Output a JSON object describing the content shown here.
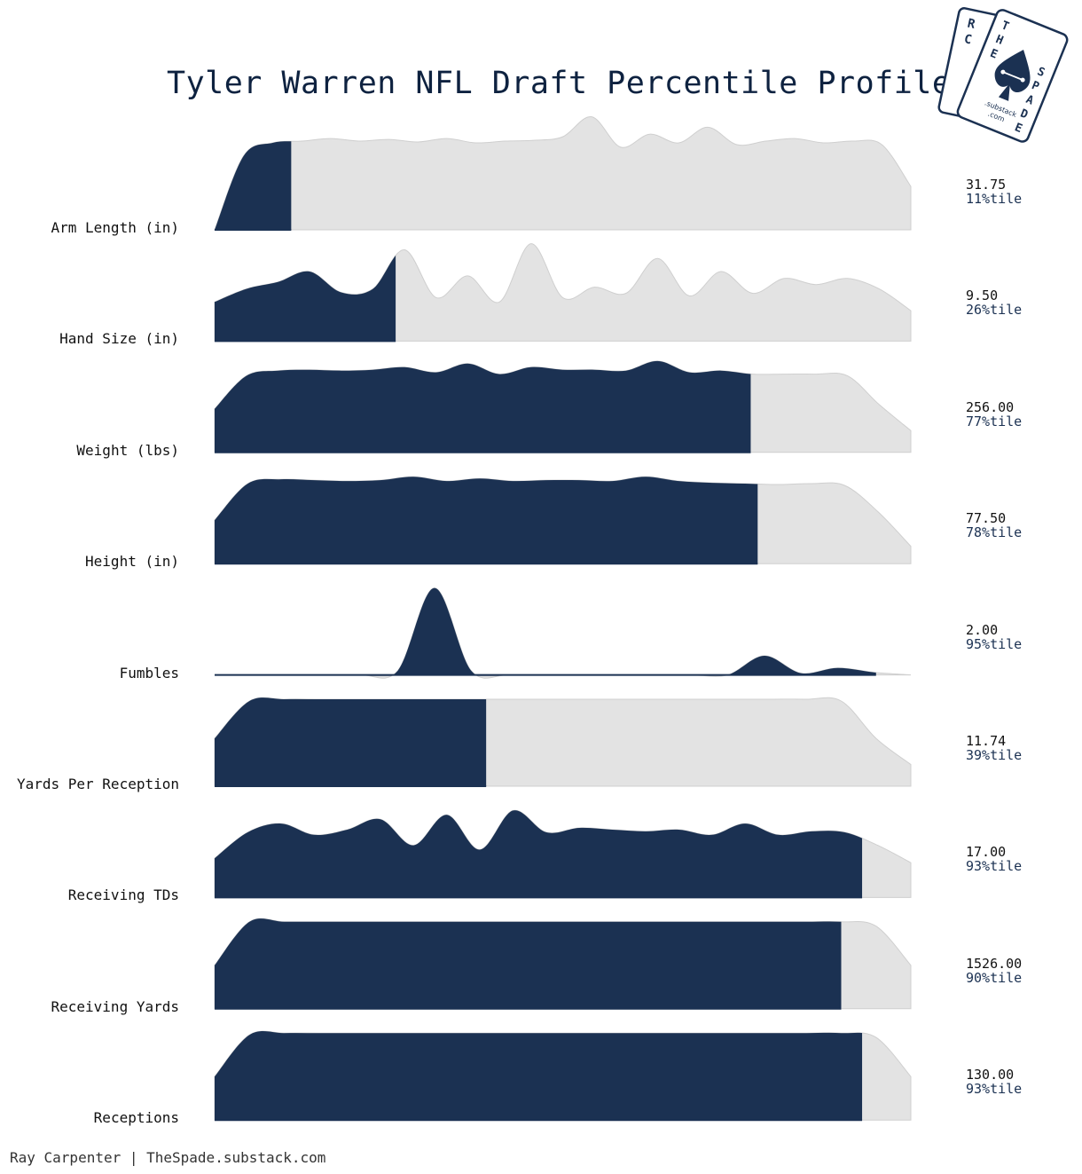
{
  "title": "Tyler Warren NFL Draft Percentile Profile",
  "footer": "Ray Carpenter | TheSpade.substack.com",
  "logo": {
    "top_text": "RC",
    "card_text": "THE SPADE",
    "sub_text": ".substack .com",
    "icon": "spade-icon"
  },
  "colors": {
    "filled": "#1b3152",
    "background_curve": "#e3e3e3",
    "baseline": "#cfcfcf",
    "title": "#0e2240"
  },
  "chart_data": {
    "type": "area",
    "chart_style": "ridgeline density with percentile fill",
    "title": "Tyler Warren NFL Draft Percentile Profile",
    "series": [
      {
        "name": "Arm Length (in)",
        "value": "31.75",
        "percentile": 11,
        "percentile_label": "11%tile",
        "density": [
          0,
          0.85,
          1.0,
          1.02,
          1.05,
          1.02,
          1.04,
          1.01,
          1.05,
          1.0,
          1.02,
          1.03,
          1.07,
          1.3,
          0.95,
          1.1,
          1.0,
          1.18,
          0.98,
          1.02,
          1.05,
          1.0,
          1.02,
          0.98,
          0.5
        ]
      },
      {
        "name": "Hand Size (in)",
        "value": "9.50",
        "percentile": 26,
        "percentile_label": "26%tile",
        "density": [
          0.45,
          0.6,
          0.68,
          0.8,
          0.56,
          0.6,
          1.05,
          0.5,
          0.75,
          0.45,
          1.12,
          0.5,
          0.62,
          0.55,
          0.95,
          0.52,
          0.8,
          0.55,
          0.72,
          0.65,
          0.72,
          0.6,
          0.35
        ]
      },
      {
        "name": "Weight (lbs)",
        "value": "256.00",
        "percentile": 77,
        "percentile_label": "77%tile",
        "density": [
          0.5,
          0.88,
          0.94,
          0.95,
          0.94,
          0.95,
          0.98,
          0.92,
          1.02,
          0.9,
          0.98,
          0.95,
          0.95,
          0.94,
          1.05,
          0.92,
          0.94,
          0.9,
          0.9,
          0.9,
          0.88,
          0.55,
          0.25
        ]
      },
      {
        "name": "Height (in)",
        "value": "77.50",
        "percentile": 78,
        "percentile_label": "78%tile",
        "density": [
          0.5,
          0.92,
          0.97,
          0.96,
          0.95,
          0.96,
          1.0,
          0.95,
          0.98,
          0.95,
          0.96,
          0.96,
          0.95,
          1.0,
          0.95,
          0.93,
          0.92,
          0.91,
          0.92,
          0.9,
          0.6,
          0.2
        ]
      },
      {
        "name": "Fumbles",
        "value": "2.00",
        "percentile": 95,
        "percentile_label": "95%tile",
        "density": [
          0,
          0,
          0,
          0,
          0,
          0.05,
          1.0,
          0.05,
          0,
          0,
          0,
          0,
          0,
          0,
          0,
          0.22,
          0.02,
          0.08,
          0.03,
          0
        ]
      },
      {
        "name": "Yards Per Reception",
        "value": "11.74",
        "percentile": 39,
        "percentile_label": "39%tile",
        "density": [
          0.55,
          0.98,
          1.0,
          1.0,
          1.0,
          1.0,
          1.0,
          1.0,
          1.0,
          1.0,
          1.0,
          1.0,
          1.0,
          1.0,
          1.0,
          1.0,
          1.0,
          1.0,
          0.98,
          0.55,
          0.25
        ]
      },
      {
        "name": "Receiving TDs",
        "value": "17.00",
        "percentile": 93,
        "percentile_label": "93%tile",
        "density": [
          0.45,
          0.75,
          0.85,
          0.72,
          0.78,
          0.9,
          0.6,
          0.95,
          0.55,
          1.0,
          0.75,
          0.8,
          0.78,
          0.76,
          0.78,
          0.72,
          0.85,
          0.72,
          0.76,
          0.75,
          0.6,
          0.4
        ]
      },
      {
        "name": "Receiving Yards",
        "value": "1526.00",
        "percentile": 90,
        "percentile_label": "90%tile",
        "density": [
          0.5,
          1.0,
          1.0,
          1.0,
          1.0,
          1.0,
          1.0,
          1.0,
          1.0,
          1.0,
          1.0,
          1.0,
          1.0,
          1.0,
          1.0,
          1.0,
          1.0,
          1.0,
          1.0,
          0.95,
          0.5
        ]
      },
      {
        "name": "Receptions",
        "value": "130.00",
        "percentile": 93,
        "percentile_label": "93%tile",
        "density": [
          0.5,
          0.98,
          1.0,
          1.0,
          1.0,
          1.0,
          1.0,
          1.0,
          1.0,
          1.0,
          1.0,
          1.0,
          1.0,
          1.0,
          1.0,
          1.0,
          1.0,
          1.0,
          1.0,
          0.95,
          0.5
        ]
      }
    ]
  }
}
